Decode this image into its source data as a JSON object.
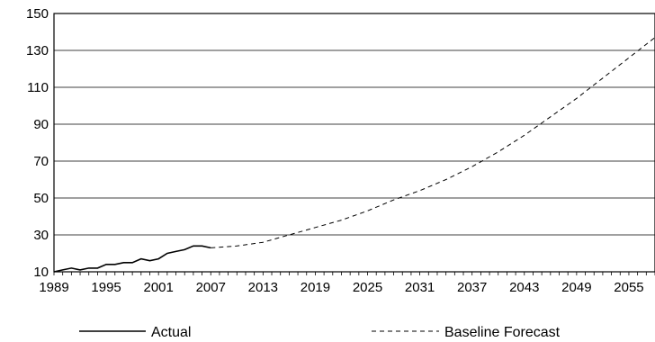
{
  "chart_data": {
    "type": "line",
    "title": "",
    "xlabel": "",
    "ylabel": "",
    "xlim": [
      1989,
      2058
    ],
    "ylim": [
      10,
      150
    ],
    "x_ticks": [
      "1989",
      "1995",
      "2001",
      "2007",
      "2013",
      "2019",
      "2025",
      "2031",
      "2037",
      "2043",
      "2049",
      "2055"
    ],
    "y_ticks": [
      "10",
      "30",
      "50",
      "70",
      "90",
      "110",
      "130",
      "150"
    ],
    "grid": "horizontal",
    "legend": "bottom",
    "series": [
      {
        "name": "Actual",
        "style": "solid",
        "color": "#000000",
        "x": [
          1989,
          1990,
          1991,
          1992,
          1993,
          1994,
          1995,
          1996,
          1997,
          1998,
          1999,
          2000,
          2001,
          2002,
          2003,
          2004,
          2005,
          2006,
          2007
        ],
        "y": [
          10,
          11,
          12,
          11,
          12,
          12,
          14,
          14,
          15,
          15,
          17,
          16,
          17,
          20,
          21,
          22,
          24,
          24,
          23
        ]
      },
      {
        "name": "Baseline Forecast",
        "style": "dashed",
        "color": "#000000",
        "x": [
          2007,
          2010,
          2013,
          2016,
          2019,
          2022,
          2025,
          2028,
          2031,
          2034,
          2037,
          2040,
          2043,
          2046,
          2049,
          2052,
          2055,
          2058
        ],
        "y": [
          23,
          24,
          26,
          30,
          34,
          38,
          43,
          49,
          54,
          60,
          67,
          75,
          84,
          94,
          104,
          115,
          126,
          137
        ]
      }
    ]
  }
}
